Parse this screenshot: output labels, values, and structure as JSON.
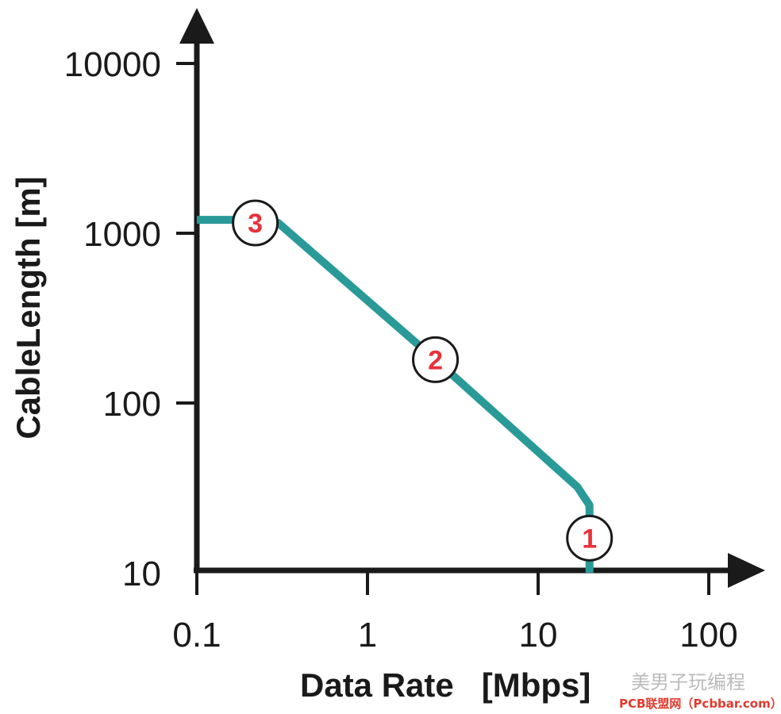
{
  "chart_data": {
    "type": "line",
    "title": "",
    "xlabel": "Data Rate   [Mbps]",
    "ylabel": "CableLength [m]",
    "x_scale": "log",
    "y_scale": "log",
    "xlim": [
      0.1,
      100
    ],
    "ylim": [
      10,
      10000
    ],
    "x_ticks": [
      "0.1",
      "1",
      "10",
      "100"
    ],
    "y_ticks": [
      "10",
      "100",
      "1000",
      "10000"
    ],
    "grid": false,
    "series": [
      {
        "color": "#2a9a98",
        "points": [
          {
            "x": 0.1,
            "y": 1200
          },
          {
            "x": 0.27,
            "y": 1200
          },
          {
            "x": 0.3,
            "y": 1150
          },
          {
            "x": 2.5,
            "y": 180
          },
          {
            "x": 17,
            "y": 32
          },
          {
            "x": 20,
            "y": 25
          },
          {
            "x": 20,
            "y": 10
          }
        ]
      }
    ],
    "annotations": [
      {
        "label": "1",
        "x": 20,
        "y": 16
      },
      {
        "label": "2",
        "x": 2.5,
        "y": 180
      },
      {
        "label": "3",
        "x": 0.22,
        "y": 1150
      }
    ],
    "colors": {
      "line": "#2a9a98",
      "axis": "#1a1a1a",
      "marker_text": "#e8313a"
    }
  },
  "watermark": {
    "line1": "美男子玩编程",
    "line2": "PCB联盟网（Pcbbar.com）"
  }
}
